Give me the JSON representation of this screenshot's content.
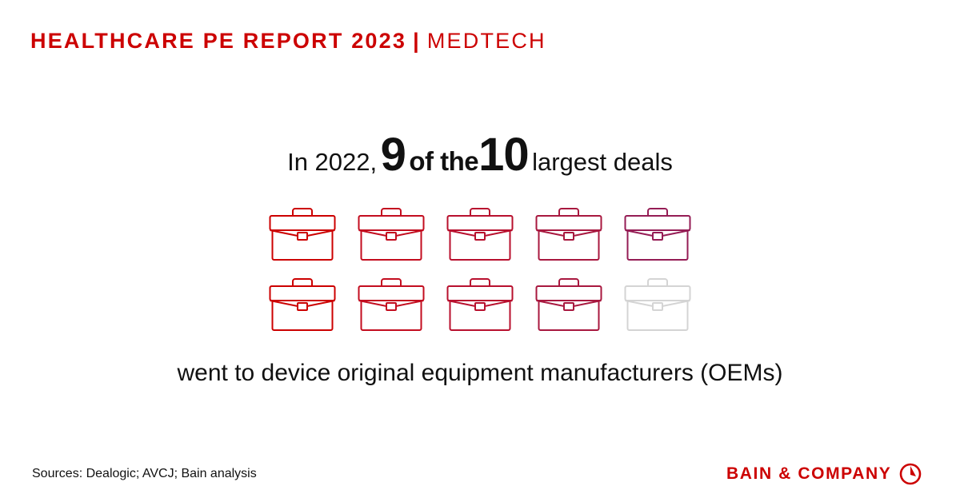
{
  "header": {
    "title": "HEALTHCARE PE REPORT 2023",
    "separator": "|",
    "section": "MEDTECH"
  },
  "headline": {
    "part1": "In 2022,",
    "num1": "9",
    "part2": "of the",
    "num2": "10",
    "part3": "largest deals"
  },
  "pictogram": {
    "total": 10,
    "highlighted": 9,
    "icon": "briefcase-icon",
    "colors": [
      "#cc0000",
      "#c30d1f",
      "#b8102e",
      "#a8183f",
      "#951d55",
      "#cc0000",
      "#c30d1f",
      "#b8102e",
      "#a8183f",
      "#d4d4d4"
    ]
  },
  "subtext": "went to device original equipment manufacturers (OEMs)",
  "footer": {
    "sources": "Sources: Dealogic; AVCJ; Bain analysis",
    "logo": "BAIN & COMPANY",
    "brand_color": "#cc0000"
  }
}
